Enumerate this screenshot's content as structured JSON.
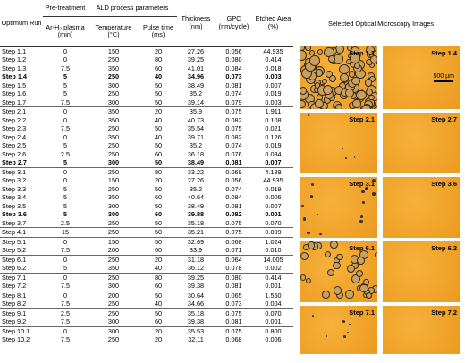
{
  "table": {
    "headers": {
      "run": "Optimum Run",
      "pretreatment": "Pre-treatment",
      "ald": "ALD process parameters",
      "plasma": "Ar-H₂ plasma (min)",
      "temperature": "Temperature (°C)",
      "pulse": "Pulse time (ms)",
      "thickness": "Thickness (nm)",
      "gpc": "GPC (nm/cycle)",
      "etched": "Etched Area (%)"
    },
    "groups": [
      [
        {
          "cells": [
            "Step 1.1",
            "0",
            "150",
            "20",
            "27.26",
            "0.056",
            "44.935"
          ]
        },
        {
          "cells": [
            "Step 1.2",
            "0",
            "250",
            "80",
            "39.25",
            "0.080",
            "0.414"
          ]
        },
        {
          "cells": [
            "Step 1.3",
            "7.5",
            "350",
            "60",
            "41.01",
            "0.084",
            "0.018"
          ]
        },
        {
          "cells": [
            "Step 1.4",
            "5",
            "250",
            "40",
            "34.96",
            "0.073",
            "0.003"
          ],
          "bold": true
        },
        {
          "cells": [
            "Step 1.5",
            "5",
            "300",
            "50",
            "38.49",
            "0.081",
            "0.007"
          ]
        },
        {
          "cells": [
            "Step 1.6",
            "5",
            "250",
            "50",
            "35.2",
            "0.074",
            "0.019"
          ]
        },
        {
          "cells": [
            "Step 1.7",
            "7.5",
            "300",
            "50",
            "39.14",
            "0.079",
            "0.003"
          ]
        }
      ],
      [
        {
          "cells": [
            "Step 2.1",
            "0",
            "350",
            "20",
            "35.9",
            "0.075",
            "1.911"
          ]
        },
        {
          "cells": [
            "Step 2.2",
            "0",
            "350",
            "40",
            "40.73",
            "0.082",
            "0.108"
          ]
        },
        {
          "cells": [
            "Step 2.3",
            "7.5",
            "250",
            "50",
            "35.54",
            "0.075",
            "0.021"
          ]
        },
        {
          "cells": [
            "Step 2.4",
            "0",
            "350",
            "40",
            "39.71",
            "0.082",
            "0.126"
          ]
        },
        {
          "cells": [
            "Step 2.5",
            "5",
            "250",
            "50",
            "35.2",
            "0.074",
            "0.019"
          ]
        },
        {
          "cells": [
            "Step 2.6",
            "2.5",
            "250",
            "60",
            "36.18",
            "0.076",
            "0.084"
          ]
        },
        {
          "cells": [
            "Step 2.7",
            "5",
            "300",
            "50",
            "38.49",
            "0.081",
            "0.007"
          ],
          "bold": true
        }
      ],
      [
        {
          "cells": [
            "Step 3.1",
            "0",
            "250",
            "80",
            "33.22",
            "0.069",
            "4.189"
          ]
        },
        {
          "cells": [
            "Step 3.2",
            "0",
            "150",
            "20",
            "27.26",
            "0.056",
            "44.935"
          ]
        },
        {
          "cells": [
            "Step 3.3",
            "5",
            "250",
            "50",
            "35.2",
            "0.074",
            "0.019"
          ]
        },
        {
          "cells": [
            "Step 3.4",
            "5",
            "350",
            "60",
            "40.64",
            "0.084",
            "0.006"
          ]
        },
        {
          "cells": [
            "Step 3.5",
            "5",
            "300",
            "50",
            "38.49",
            "0.081",
            "0.007"
          ]
        },
        {
          "cells": [
            "Step 3.6",
            "5",
            "300",
            "60",
            "39.88",
            "0.082",
            "0.001"
          ],
          "bold": true
        },
        {
          "cells": [
            "Step 3.7",
            "2.5",
            "250",
            "50",
            "35.18",
            "0.075",
            "0.070"
          ]
        }
      ],
      [
        {
          "cells": [
            "Step 4.1",
            "15",
            "250",
            "50",
            "35.21",
            "0.075",
            "0.009"
          ]
        }
      ],
      [
        {
          "cells": [
            "Step 5.1",
            "0",
            "150",
            "50",
            "32.69",
            "0.068",
            "1.024"
          ]
        },
        {
          "cells": [
            "Step 5.2",
            "7.5",
            "200",
            "60",
            "33.9",
            "0.071",
            "0.010"
          ]
        }
      ],
      [
        {
          "cells": [
            "Step 6.1",
            "0",
            "250",
            "20",
            "31.18",
            "0.064",
            "14.005"
          ]
        },
        {
          "cells": [
            "Step 6.2",
            "5",
            "350",
            "40",
            "36.12",
            "0.078",
            "0.002"
          ]
        }
      ],
      [
        {
          "cells": [
            "Step 7.1",
            "0",
            "250",
            "80",
            "39.25",
            "0.080",
            "0.414"
          ]
        },
        {
          "cells": [
            "Step 7.2",
            "7.5",
            "300",
            "60",
            "39.38",
            "0.081",
            "0.001"
          ]
        }
      ],
      [
        {
          "cells": [
            "Step 8.1",
            "0",
            "200",
            "50",
            "30.64",
            "0.065",
            "1.550"
          ]
        },
        {
          "cells": [
            "Step 8.2",
            "7.5",
            "250",
            "40",
            "34.66",
            "0.073",
            "0.004"
          ]
        }
      ],
      [
        {
          "cells": [
            "Step 9.1",
            "2.5",
            "250",
            "50",
            "35.18",
            "0.075",
            "0.070"
          ]
        },
        {
          "cells": [
            "Step 9.2",
            "7.5",
            "300",
            "60",
            "39.38",
            "0.081",
            "0.001"
          ]
        }
      ],
      [
        {
          "cells": [
            "Step 10.1",
            "0",
            "300",
            "20",
            "35.53",
            "0.075",
            "0.800"
          ]
        },
        {
          "cells": [
            "Step 10.2",
            "7.5",
            "250",
            "20",
            "32.11",
            "0.068",
            "0.006"
          ]
        }
      ]
    ]
  },
  "images": {
    "title": "Selected Optical Microscopy Images",
    "scale_bar": "500 µm",
    "panels": [
      {
        "left": "Step 1.1",
        "right": "Step 1.4"
      },
      {
        "left": "Step 2.1",
        "right": "Step 2.7"
      },
      {
        "left": "Step 3.1",
        "right": "Step 3.6"
      },
      {
        "left": "Step 6.1",
        "right": "Step 6.2"
      },
      {
        "left": "Step 7.1",
        "right": "Step 7.2"
      }
    ]
  }
}
